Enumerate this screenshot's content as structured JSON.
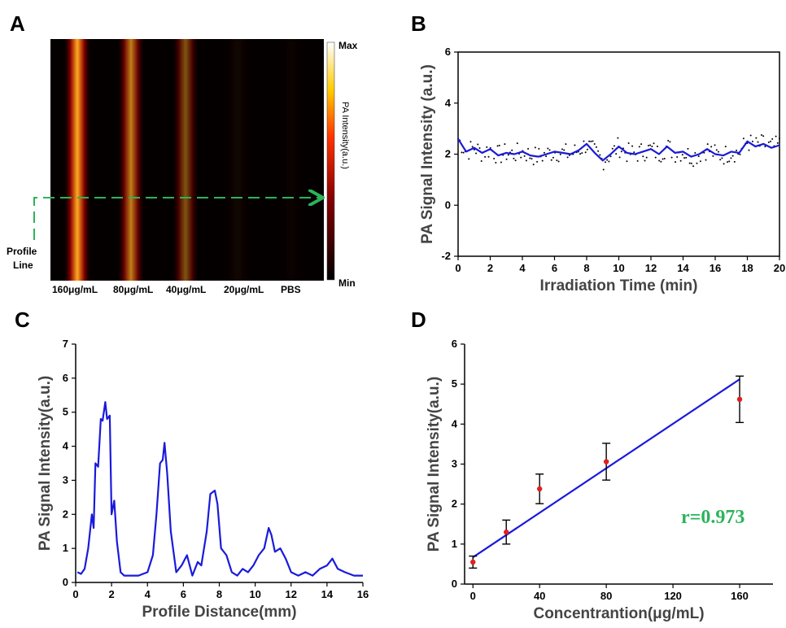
{
  "panels": {
    "A": {
      "letter": "A",
      "colorbar_max": "Max",
      "colorbar_min": "Min",
      "colorbar_label": "PA Intensity(a.u.)",
      "profile_label_line1": "Profile",
      "profile_label_line2": "Line",
      "categories": [
        "160μg/mL",
        "80μg/mL",
        "40μg/mL",
        "20μg/mL",
        "PBS"
      ],
      "profile_line_color": "#2db35a"
    },
    "B": {
      "letter": "B"
    },
    "C": {
      "letter": "C"
    },
    "D": {
      "letter": "D",
      "annotation": "r=0.973"
    }
  },
  "chart_data": [
    {
      "panel": "A",
      "type": "heatmap",
      "columns": [
        "160μg/mL",
        "80μg/mL",
        "40μg/mL",
        "20μg/mL",
        "PBS"
      ],
      "relative_intensity": [
        1.0,
        0.75,
        0.5,
        0.05,
        0.02
      ],
      "colormap": "hot",
      "colorbar": {
        "min": "Min",
        "max": "Max",
        "label": "PA Intensity(a.u.)"
      }
    },
    {
      "panel": "B",
      "type": "line",
      "xlabel": "Irradiation Time (min)",
      "ylabel": "PA Signal Intensity (a.u.)",
      "xlim": [
        0,
        20
      ],
      "ylim": [
        -2,
        6
      ],
      "xticks": [
        0,
        2,
        4,
        6,
        8,
        10,
        12,
        14,
        16,
        18,
        20
      ],
      "yticks": [
        -2,
        0,
        2,
        4,
        6
      ],
      "series": [
        {
          "color": "#1a1adb",
          "x": [
            0,
            0.5,
            1,
            1.5,
            2,
            2.5,
            3,
            3.5,
            4,
            4.5,
            5,
            5.5,
            6,
            6.5,
            7,
            7.5,
            8,
            8.5,
            9,
            9.5,
            10,
            10.5,
            11,
            11.5,
            12,
            12.5,
            13,
            13.5,
            14,
            14.5,
            15,
            15.5,
            16,
            16.5,
            17,
            17.5,
            18,
            18.5,
            19,
            19.5,
            20
          ],
          "y": [
            2.6,
            2.1,
            2.25,
            2.05,
            2.2,
            1.95,
            2.05,
            2.0,
            2.1,
            1.95,
            1.9,
            2.0,
            2.1,
            2.05,
            2.0,
            2.15,
            2.4,
            2.05,
            1.75,
            2.0,
            2.3,
            2.05,
            2.0,
            2.1,
            2.2,
            2.0,
            2.3,
            2.05,
            2.1,
            1.9,
            2.0,
            2.2,
            2.0,
            1.95,
            2.1,
            2.05,
            2.5,
            2.3,
            2.4,
            2.25,
            2.35
          ]
        }
      ]
    },
    {
      "panel": "C",
      "type": "line",
      "xlabel": "Profile Distance(mm)",
      "ylabel": "PA Signal Intensity(a.u.)",
      "xlim": [
        0,
        16
      ],
      "ylim": [
        0,
        7
      ],
      "xticks": [
        0,
        2,
        4,
        6,
        8,
        10,
        12,
        14,
        16
      ],
      "yticks": [
        0,
        1,
        2,
        3,
        4,
        5,
        6,
        7
      ],
      "series": [
        {
          "color": "#1a1adb",
          "x": [
            0.1,
            0.3,
            0.5,
            0.7,
            0.9,
            1.0,
            1.1,
            1.25,
            1.4,
            1.5,
            1.65,
            1.75,
            1.9,
            2.0,
            2.15,
            2.3,
            2.5,
            2.7,
            3.0,
            3.5,
            4.0,
            4.3,
            4.5,
            4.7,
            4.85,
            4.95,
            5.1,
            5.3,
            5.6,
            5.9,
            6.2,
            6.5,
            6.8,
            7.0,
            7.3,
            7.5,
            7.75,
            7.9,
            8.1,
            8.4,
            8.7,
            9.0,
            9.3,
            9.6,
            9.9,
            10.2,
            10.5,
            10.75,
            10.9,
            11.1,
            11.4,
            11.7,
            12.0,
            12.4,
            12.8,
            13.2,
            13.6,
            14.0,
            14.3,
            14.6,
            15.0,
            15.5,
            16.0
          ],
          "y": [
            0.3,
            0.25,
            0.4,
            1.0,
            2.0,
            1.6,
            3.5,
            3.4,
            4.8,
            4.75,
            5.3,
            4.8,
            4.9,
            2.0,
            2.4,
            1.2,
            0.3,
            0.2,
            0.2,
            0.2,
            0.3,
            0.8,
            2.0,
            3.5,
            3.6,
            4.1,
            3.2,
            1.5,
            0.3,
            0.5,
            0.8,
            0.2,
            0.6,
            0.5,
            1.5,
            2.6,
            2.7,
            2.3,
            1.0,
            0.8,
            0.3,
            0.2,
            0.4,
            0.3,
            0.5,
            0.8,
            1.0,
            1.6,
            1.4,
            0.9,
            1.0,
            0.7,
            0.3,
            0.2,
            0.3,
            0.2,
            0.4,
            0.5,
            0.7,
            0.4,
            0.3,
            0.2,
            0.2
          ]
        }
      ]
    },
    {
      "panel": "D",
      "type": "scatter",
      "xlabel": "Concentrantion(μg/mL)",
      "ylabel": "PA Signal Intensity(a.u.)",
      "xlim": [
        -5,
        180
      ],
      "ylim": [
        0,
        6
      ],
      "xticks": [
        0,
        40,
        80,
        120,
        160
      ],
      "yticks": [
        0,
        1,
        2,
        3,
        4,
        5,
        6
      ],
      "points": {
        "x": [
          0,
          20,
          40,
          80,
          160
        ],
        "y": [
          0.55,
          1.3,
          2.38,
          3.06,
          4.62
        ],
        "err": [
          0.15,
          0.3,
          0.37,
          0.46,
          0.58
        ],
        "color": "#e02020"
      },
      "fit": {
        "x": [
          0,
          160
        ],
        "y": [
          0.67,
          5.12
        ],
        "color": "#1a1adb"
      },
      "annotation": "r=0.973"
    }
  ]
}
